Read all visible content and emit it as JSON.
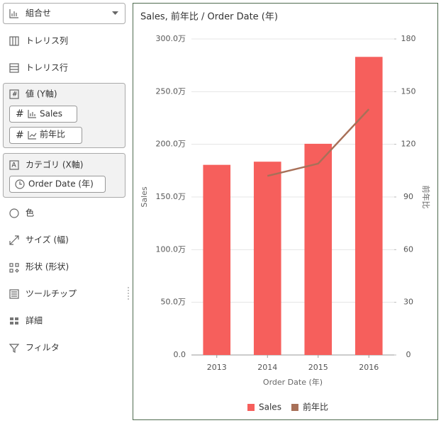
{
  "sidebar": {
    "mark_type": "組合せ",
    "trellis_columns": "トレリス列",
    "trellis_rows": "トレリス行",
    "values_section": {
      "title": "値 (Y軸)",
      "fields": [
        "Sales",
        "前年比"
      ]
    },
    "category_section": {
      "title": "カテゴリ (X軸)",
      "fields": [
        "Order Date (年)"
      ]
    },
    "properties": [
      "色",
      "サイズ (幅)",
      "形状 (形状)",
      "ツールチップ",
      "詳細",
      "フィルタ"
    ]
  },
  "chart_data": {
    "type": "combo",
    "title": "Sales, 前年比 / Order Date (年)",
    "x_label": "Order Date (年)",
    "y_label": "Sales",
    "y2_label": "前年比",
    "categories": [
      "2013",
      "2014",
      "2015",
      "2016"
    ],
    "series": [
      {
        "name": "Sales",
        "type": "bar",
        "color": "#f65f5c",
        "values": [
          180.5,
          183.5,
          200.5,
          283
        ]
      },
      {
        "name": "前年比",
        "type": "line",
        "axis": "y2",
        "color": "#a87058",
        "values": [
          null,
          102,
          109,
          140
        ]
      }
    ],
    "ylim": [
      0,
      300
    ],
    "yticks": [
      {
        "value": 0,
        "label": "0.0"
      },
      {
        "value": 50,
        "label": "50.0万"
      },
      {
        "value": 100,
        "label": "100.0万"
      },
      {
        "value": 150,
        "label": "150.0万"
      },
      {
        "value": 200,
        "label": "200.0万"
      },
      {
        "value": 250,
        "label": "250.0万"
      },
      {
        "value": 300,
        "label": "300.0万"
      }
    ],
    "y2lim": [
      0,
      180
    ],
    "y2ticks": [
      0,
      30,
      60,
      90,
      120,
      150,
      180
    ],
    "grid": true,
    "legend": "bottom"
  }
}
